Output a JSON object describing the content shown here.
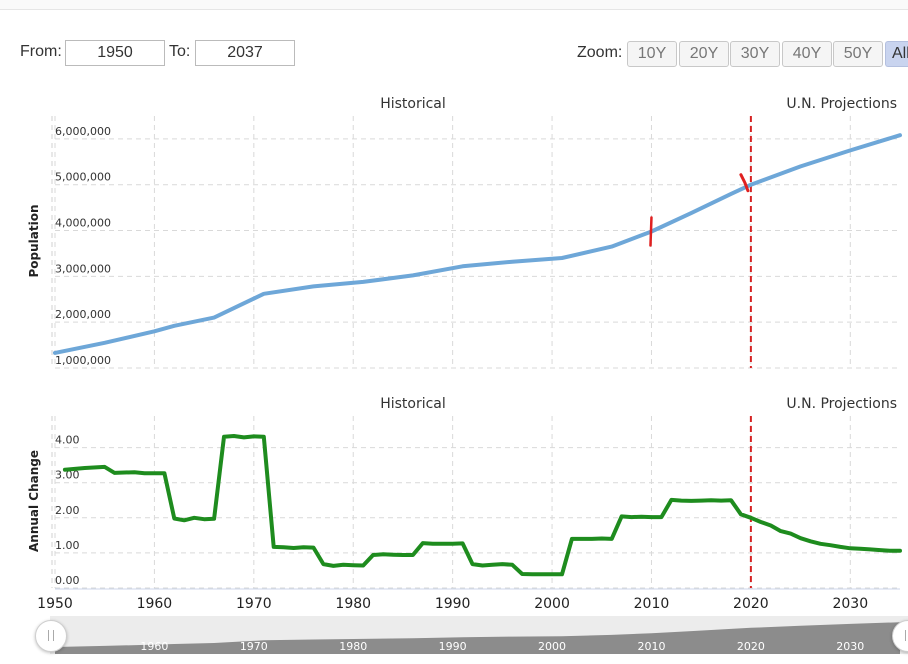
{
  "range": {
    "from_label": "From:",
    "from_value": "1950",
    "to_label": "To:",
    "to_value": "2037"
  },
  "zoom": {
    "label": "Zoom:",
    "buttons": [
      {
        "label": "10Y",
        "active": false
      },
      {
        "label": "20Y",
        "active": false
      },
      {
        "label": "30Y",
        "active": false
      },
      {
        "label": "40Y",
        "active": false
      },
      {
        "label": "50Y",
        "active": false
      },
      {
        "label": "All",
        "active": true
      }
    ]
  },
  "colors": {
    "population": "#6ea7d8",
    "annual_change": "#1e8c1e",
    "projection_line": "#d62222",
    "grid": "#d9d9d9"
  },
  "chart_data": [
    {
      "type": "line",
      "section_labels": {
        "historical": "Historical",
        "projections": "U.N. Projections"
      },
      "ylabel": "Population",
      "projection_start": 2020,
      "xlim": [
        1950,
        2035
      ],
      "ylim": [
        1000000,
        6500000
      ],
      "yticks": [
        {
          "value": 1000000,
          "label": "1,000,000"
        },
        {
          "value": 2000000,
          "label": "2,000,000"
        },
        {
          "value": 3000000,
          "label": "3,000,000"
        },
        {
          "value": 4000000,
          "label": "4,000,000"
        },
        {
          "value": 5000000,
          "label": "5,000,000"
        },
        {
          "value": 6000000,
          "label": "6,000,000"
        }
      ],
      "series": [
        {
          "x": [
            1950,
            1955,
            1960,
            1962,
            1966,
            1971,
            1976,
            1981,
            1986,
            1991,
            1996,
            2001,
            2006,
            2010,
            2014,
            2018,
            2020,
            2025,
            2030,
            2035
          ],
          "values": [
            1330000,
            1550000,
            1800000,
            1920000,
            2100000,
            2620000,
            2780000,
            2880000,
            3020000,
            3220000,
            3320000,
            3400000,
            3650000,
            3980000,
            4380000,
            4800000,
            5000000,
            5400000,
            5750000,
            6080000
          ]
        }
      ]
    },
    {
      "type": "line",
      "section_labels": {
        "historical": "Historical",
        "projections": "U.N. Projections"
      },
      "ylabel": "Annual Change",
      "projection_start": 2020,
      "xlim": [
        1950,
        2035
      ],
      "ylim": [
        0,
        4.9
      ],
      "yticks": [
        {
          "value": 0,
          "label": "0.00"
        },
        {
          "value": 1,
          "label": "1.00"
        },
        {
          "value": 2,
          "label": "2.00"
        },
        {
          "value": 3,
          "label": "3.00"
        },
        {
          "value": 4,
          "label": "4.00"
        }
      ],
      "xticks": [
        "1950",
        "1960",
        "1970",
        "1980",
        "1990",
        "2000",
        "2010",
        "2020",
        "2030"
      ],
      "series": [
        {
          "x": [
            1951,
            1953,
            1955,
            1956,
            1958,
            1959,
            1961,
            1962,
            1963,
            1964,
            1965,
            1966,
            1967,
            1968,
            1969,
            1970,
            1971,
            1972,
            1973,
            1974,
            1975,
            1976,
            1977,
            1978,
            1979,
            1980,
            1981,
            1982,
            1983,
            1984,
            1985,
            1986,
            1987,
            1988,
            1989,
            1990,
            1991,
            1992,
            1993,
            1994,
            1995,
            1996,
            1997,
            1998,
            1999,
            2000,
            2001,
            2002,
            2003,
            2004,
            2005,
            2006,
            2007,
            2008,
            2009,
            2010,
            2011,
            2012,
            2013,
            2014,
            2015,
            2016,
            2017,
            2018,
            2019,
            2020,
            2021,
            2022,
            2023,
            2024,
            2025,
            2026,
            2027,
            2028,
            2029,
            2030,
            2031,
            2032,
            2033,
            2034,
            2035
          ],
          "values": [
            3.37,
            3.42,
            3.45,
            3.28,
            3.3,
            3.27,
            3.27,
            1.98,
            1.93,
            2.0,
            1.96,
            1.97,
            4.31,
            4.33,
            4.29,
            4.32,
            4.31,
            1.17,
            1.16,
            1.14,
            1.16,
            1.15,
            0.68,
            0.63,
            0.66,
            0.65,
            0.64,
            0.94,
            0.96,
            0.95,
            0.94,
            0.94,
            1.28,
            1.26,
            1.26,
            1.26,
            1.27,
            0.68,
            0.64,
            0.66,
            0.68,
            0.66,
            0.4,
            0.39,
            0.39,
            0.39,
            0.39,
            1.4,
            1.4,
            1.4,
            1.41,
            1.4,
            2.04,
            2.02,
            2.03,
            2.02,
            2.02,
            2.51,
            2.49,
            2.48,
            2.49,
            2.5,
            2.49,
            2.5,
            2.1,
            2.0,
            1.88,
            1.78,
            1.62,
            1.55,
            1.42,
            1.33,
            1.26,
            1.22,
            1.17,
            1.13,
            1.12,
            1.1,
            1.08,
            1.06,
            1.06
          ]
        }
      ]
    }
  ],
  "navigator": {
    "tick_labels": [
      "1960",
      "1970",
      "1980",
      "1990",
      "2000",
      "2010",
      "2020",
      "2030"
    ]
  }
}
